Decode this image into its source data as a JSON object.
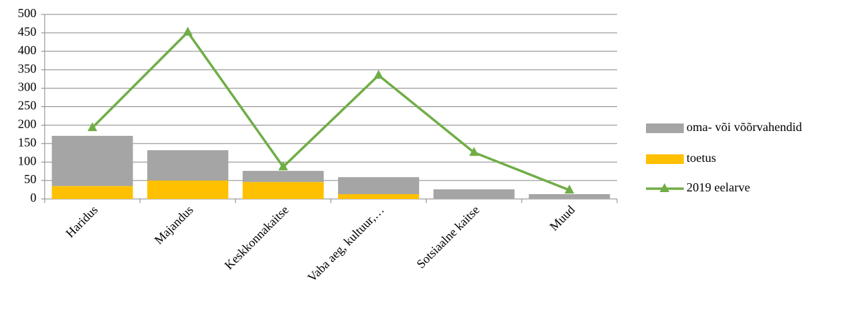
{
  "chart_data": {
    "type": "bar_line",
    "categories": [
      "Haridus",
      "Majandus",
      "Keskkonnakaitse",
      "Vaba aeg, kultuur,…",
      "Sotsiaalne kaitse",
      "Muud"
    ],
    "series": [
      {
        "name": "oma- või võõrvahendid",
        "type": "bar",
        "color": "#a5a5a5",
        "values": [
          136,
          82,
          30,
          46,
          26,
          13
        ]
      },
      {
        "name": "toetus",
        "type": "bar",
        "color": "#ffc000",
        "values": [
          35,
          50,
          46,
          13,
          0,
          0
        ]
      },
      {
        "name": "2019 eelarve",
        "type": "line",
        "color": "#70ad47",
        "values": [
          193,
          452,
          87,
          335,
          126,
          24
        ]
      }
    ],
    "ylim": [
      0,
      500
    ],
    "yticks": [
      0,
      50,
      100,
      150,
      200,
      250,
      300,
      350,
      400,
      450,
      500
    ],
    "grid": true
  }
}
